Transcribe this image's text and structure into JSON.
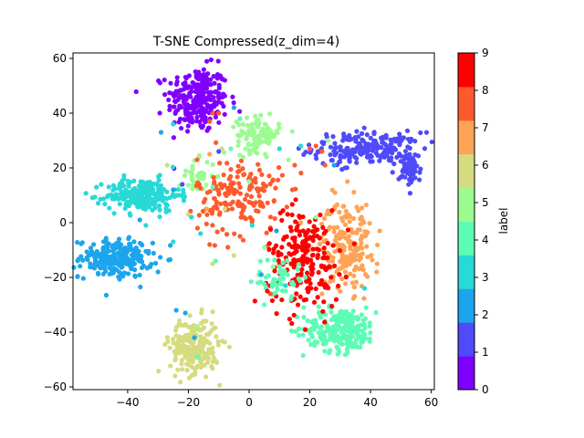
{
  "chart_data": {
    "type": "scatter",
    "title": "T-SNE Compressed(z_dim=4)",
    "xlabel": "",
    "ylabel": "",
    "xlim": [
      -58,
      61
    ],
    "ylim": [
      -61,
      62
    ],
    "xticks": [
      -40,
      -20,
      0,
      20,
      40,
      60
    ],
    "yticks": [
      -60,
      -40,
      -20,
      0,
      20,
      40,
      60
    ],
    "grid": false,
    "colorbar": {
      "label": "label",
      "ticks": [
        0,
        1,
        2,
        3,
        4,
        5,
        6,
        7,
        8,
        9
      ],
      "colors": [
        "#8000ff",
        "#4f4afb",
        "#1ca5ec",
        "#28d9d6",
        "#5cfcb4",
        "#9cfb91",
        "#d4dc7f",
        "#ffa356",
        "#ff5a2d",
        "#ff0000"
      ]
    },
    "clusters": [
      {
        "label": 0,
        "center": [
          -17,
          45
        ],
        "spread": [
          5,
          6
        ],
        "count": 260
      },
      {
        "label": 1,
        "center": [
          39,
          27
        ],
        "spread": [
          9,
          3
        ],
        "count": 210
      },
      {
        "label": 1,
        "center": [
          53,
          19
        ],
        "spread": [
          1.8,
          3
        ],
        "count": 60
      },
      {
        "label": 2,
        "center": [
          -44,
          -13
        ],
        "spread": [
          6,
          3.5
        ],
        "count": 230
      },
      {
        "label": 3,
        "center": [
          -35,
          10
        ],
        "spread": [
          6,
          3
        ],
        "count": 230
      },
      {
        "label": 4,
        "center": [
          30,
          -39
        ],
        "spread": [
          6,
          4
        ],
        "count": 240
      },
      {
        "label": 5,
        "center": [
          3,
          32
        ],
        "spread": [
          3.5,
          3
        ],
        "count": 110
      },
      {
        "label": 5,
        "center": [
          -17,
          17
        ],
        "spread": [
          3,
          3
        ],
        "count": 40
      },
      {
        "label": 6,
        "center": [
          -18,
          -45
        ],
        "spread": [
          4,
          5
        ],
        "count": 230
      },
      {
        "label": 7,
        "center": [
          32,
          -8
        ],
        "spread": [
          4,
          8
        ],
        "count": 190
      },
      {
        "label": 8,
        "center": [
          -3,
          10
        ],
        "spread": [
          7,
          7
        ],
        "count": 170
      },
      {
        "label": 9,
        "center": [
          18,
          -13
        ],
        "spread": [
          6,
          9
        ],
        "count": 210
      },
      {
        "label": 4,
        "center": [
          10,
          -20
        ],
        "spread": [
          4,
          4
        ],
        "count": 50
      }
    ],
    "scatter_noise": [
      [
        -29,
        33,
        2
      ],
      [
        -25,
        36,
        3
      ],
      [
        -5,
        42,
        2
      ],
      [
        -3,
        38,
        4
      ],
      [
        -6,
        27,
        4
      ],
      [
        -9,
        27,
        6
      ],
      [
        -10,
        26,
        1
      ],
      [
        -10,
        40,
        8
      ],
      [
        -12,
        40,
        8
      ],
      [
        -13,
        37,
        8
      ],
      [
        10,
        27,
        3
      ],
      [
        17,
        28,
        3
      ],
      [
        20,
        27,
        8
      ],
      [
        22,
        28,
        8
      ],
      [
        24,
        26,
        8
      ],
      [
        26,
        30,
        5
      ],
      [
        25,
        21,
        8
      ],
      [
        15,
        21,
        8
      ],
      [
        33,
        23,
        1
      ],
      [
        -36,
        1,
        2
      ],
      [
        -34,
        -1,
        3
      ],
      [
        -25,
        12,
        2
      ],
      [
        -20,
        3,
        6
      ],
      [
        -17,
        -2,
        8
      ],
      [
        -16,
        -4,
        3
      ],
      [
        -12,
        -15,
        6
      ],
      [
        -11,
        -14,
        4
      ],
      [
        -13,
        -8,
        8
      ],
      [
        -7,
        -9,
        8
      ],
      [
        -3,
        -5,
        8
      ],
      [
        -24,
        -32,
        2
      ],
      [
        -21,
        -33,
        2
      ],
      [
        -17,
        -38,
        5
      ],
      [
        -18,
        -42,
        2
      ],
      [
        -17,
        -49,
        4
      ],
      [
        -30,
        -18,
        2
      ],
      [
        -25,
        -7,
        3
      ],
      [
        7,
        -26,
        8
      ],
      [
        5,
        -30,
        4
      ],
      [
        6,
        -25,
        9
      ],
      [
        8,
        -16,
        5
      ],
      [
        4,
        -19,
        2
      ],
      [
        14,
        -27,
        4
      ],
      [
        18,
        -31,
        4
      ],
      [
        24,
        -26,
        7
      ],
      [
        38,
        -24,
        3
      ],
      [
        42,
        -18,
        7
      ],
      [
        43,
        -3,
        7
      ],
      [
        37,
        2,
        7
      ],
      [
        22,
        2,
        5
      ],
      [
        17,
        0,
        7
      ],
      [
        9,
        -3,
        2
      ],
      [
        5,
        -9,
        5
      ],
      [
        1,
        -1,
        3
      ],
      [
        13,
        23,
        5
      ],
      [
        -2,
        24,
        5
      ],
      [
        -22,
        14,
        1
      ],
      [
        -23,
        10,
        3
      ],
      [
        -12,
        13,
        4
      ],
      [
        -19,
        2,
        3
      ],
      [
        -14,
        5,
        7
      ],
      [
        -8,
        5,
        6
      ],
      [
        12,
        -23,
        3
      ],
      [
        16,
        -17,
        4
      ],
      [
        0,
        15,
        5
      ],
      [
        -27,
        21,
        6
      ],
      [
        -13,
        25,
        7
      ],
      [
        30,
        24,
        1
      ],
      [
        28,
        21,
        2
      ],
      [
        -5,
        -12,
        6
      ]
    ]
  }
}
